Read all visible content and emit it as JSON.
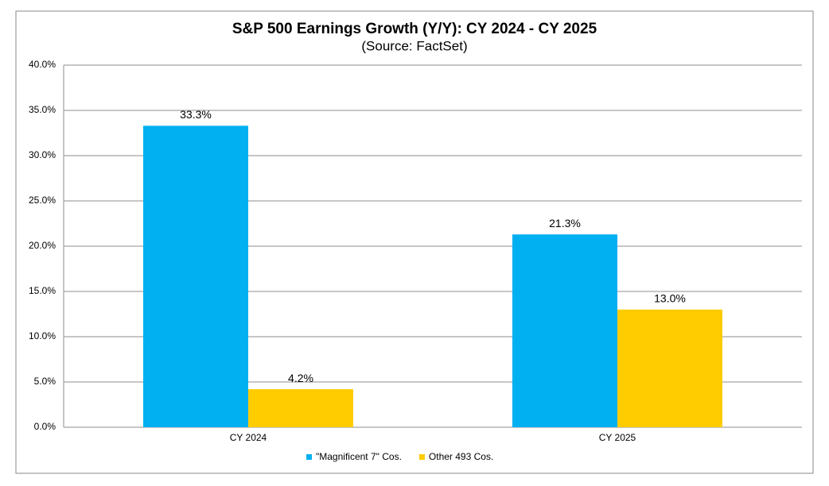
{
  "chart_data": {
    "type": "bar",
    "title": "S&P 500 Earnings Growth (Y/Y): CY 2024 - CY 2025",
    "subtitle": "(Source: FactSet)",
    "categories": [
      "CY 2024",
      "CY 2025"
    ],
    "series": [
      {
        "name": "\"Magnificent 7\" Cos.",
        "color": "#00b0f0",
        "values": [
          33.3,
          21.3
        ],
        "value_labels": [
          "33.3%",
          "21.3%"
        ]
      },
      {
        "name": "Other 493 Cos.",
        "color": "#ffcc00",
        "values": [
          4.2,
          13.0
        ],
        "value_labels": [
          "4.2%",
          "13.0%"
        ]
      }
    ],
    "ylim": [
      0,
      40
    ],
    "yticks": [
      {
        "value": 0,
        "label": "0.0%"
      },
      {
        "value": 5,
        "label": "5.0%"
      },
      {
        "value": 10,
        "label": "10.0%"
      },
      {
        "value": 15,
        "label": "15.0%"
      },
      {
        "value": 20,
        "label": "20.0%"
      },
      {
        "value": 25,
        "label": "25.0%"
      },
      {
        "value": 30,
        "label": "30.0%"
      },
      {
        "value": 35,
        "label": "35.0%"
      },
      {
        "value": 40,
        "label": "40.0%"
      }
    ],
    "grid": true,
    "legend": "bottom"
  }
}
